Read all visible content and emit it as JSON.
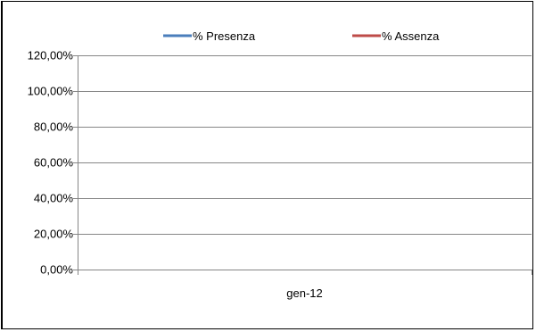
{
  "chart_data": {
    "type": "line",
    "categories": [
      "gen-12"
    ],
    "series": [
      {
        "name": "% Presenza",
        "values": [
          null
        ],
        "color": "#4a7ebb"
      },
      {
        "name": "% Assenza",
        "values": [
          null
        ],
        "color": "#be4b48"
      }
    ],
    "yticks": [
      "0,00%",
      "20,00%",
      "40,00%",
      "60,00%",
      "80,00%",
      "100,00%",
      "120,00%"
    ],
    "ylim": [
      0,
      1.2
    ],
    "title": "",
    "xlabel": "",
    "ylabel": "",
    "grid": true,
    "legend_position": "top"
  }
}
